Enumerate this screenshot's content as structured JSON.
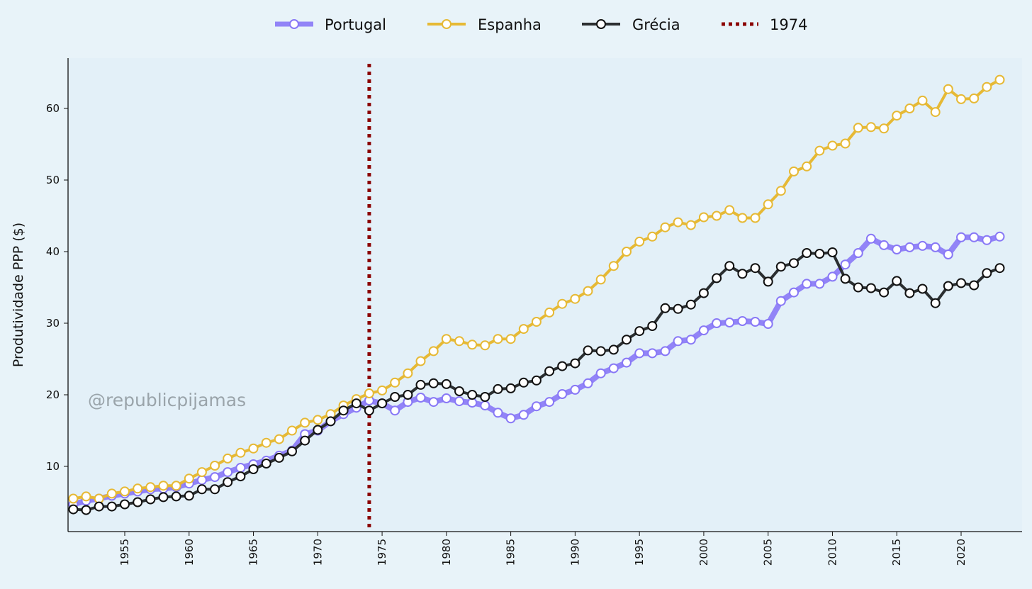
{
  "chart_data": {
    "type": "line",
    "title": "",
    "xlabel": "",
    "ylabel": "Produtividade PPP ($)",
    "watermark": "@republicpijamas",
    "xlim": [
      1950,
      2024
    ],
    "ylim": [
      0.9,
      67
    ],
    "xticks": [
      1955,
      1960,
      1965,
      1970,
      1975,
      1980,
      1985,
      1990,
      1995,
      2000,
      2005,
      2010,
      2015,
      2020
    ],
    "yticks": [
      10,
      20,
      30,
      40,
      50,
      60
    ],
    "grid": false,
    "legend_position": "top-center",
    "x": [
      1951,
      1952,
      1953,
      1954,
      1955,
      1956,
      1957,
      1958,
      1959,
      1960,
      1961,
      1962,
      1963,
      1964,
      1965,
      1966,
      1967,
      1968,
      1969,
      1970,
      1971,
      1972,
      1973,
      1974,
      1975,
      1976,
      1977,
      1978,
      1979,
      1980,
      1981,
      1982,
      1983,
      1984,
      1985,
      1986,
      1987,
      1988,
      1989,
      1990,
      1991,
      1992,
      1993,
      1994,
      1995,
      1996,
      1997,
      1998,
      1999,
      2000,
      2001,
      2002,
      2003,
      2004,
      2005,
      2006,
      2007,
      2008,
      2009,
      2010,
      2011,
      2012,
      2013,
      2014,
      2015,
      2016,
      2017,
      2018,
      2019,
      2020,
      2021,
      2022,
      2023
    ],
    "series": [
      {
        "name": "Portugal",
        "color": "#8878f6",
        "values": [
          4.7,
          5.2,
          5.5,
          5.9,
          6.2,
          6.5,
          6.8,
          6.9,
          7.1,
          7.6,
          8.1,
          8.5,
          9.2,
          9.8,
          10.3,
          10.8,
          11.5,
          12.2,
          14.5,
          15.0,
          16.3,
          17.3,
          18.2,
          19.2,
          18.8,
          17.8,
          19.0,
          19.6,
          19.0,
          19.5,
          19.1,
          18.9,
          18.5,
          17.5,
          16.7,
          17.2,
          18.4,
          19.0,
          20.1,
          20.7,
          21.6,
          23.0,
          23.7,
          24.5,
          25.8,
          25.8,
          26.1,
          27.5,
          27.7,
          29.0,
          30.0,
          30.1,
          30.3,
          30.2,
          29.9,
          33.1,
          34.3,
          35.5,
          35.5,
          36.5,
          38.2,
          39.8,
          41.8,
          40.9,
          40.3,
          40.6,
          40.8,
          40.6,
          39.6,
          42.0,
          42.0,
          41.6,
          42.1
        ]
      },
      {
        "name": "Espanha",
        "color": "#e6b935",
        "values": [
          5.5,
          5.8,
          5.5,
          6.2,
          6.5,
          6.9,
          7.1,
          7.3,
          7.3,
          8.3,
          9.2,
          10.1,
          11.1,
          11.9,
          12.5,
          13.3,
          13.8,
          15.0,
          16.1,
          16.5,
          17.3,
          18.5,
          19.4,
          20.2,
          20.6,
          21.7,
          23.0,
          24.7,
          26.1,
          27.8,
          27.5,
          27.0,
          26.9,
          27.8,
          27.8,
          29.2,
          30.2,
          31.5,
          32.7,
          33.4,
          34.5,
          36.1,
          38.0,
          40.0,
          41.4,
          42.1,
          43.4,
          44.1,
          43.7,
          44.8,
          45.0,
          45.8,
          44.7,
          44.7,
          46.6,
          48.5,
          51.2,
          51.9,
          54.1,
          54.8,
          55.1,
          57.3,
          57.4,
          57.2,
          59.0,
          60.0,
          61.1,
          59.5,
          62.7,
          61.3,
          61.4,
          63.0,
          64.0
        ]
      },
      {
        "name": "Grécia",
        "color": "#2b2f31",
        "values": [
          4.0,
          3.9,
          4.4,
          4.4,
          4.7,
          5.0,
          5.4,
          5.7,
          5.8,
          5.9,
          6.8,
          6.8,
          7.8,
          8.6,
          9.6,
          10.4,
          11.2,
          12.1,
          13.6,
          15.1,
          16.3,
          17.8,
          18.8,
          17.8,
          18.8,
          19.7,
          20.0,
          21.4,
          21.6,
          21.5,
          20.5,
          20.0,
          19.7,
          20.8,
          20.9,
          21.7,
          22.0,
          23.3,
          24.0,
          24.4,
          26.2,
          26.1,
          26.3,
          27.7,
          28.9,
          29.6,
          32.1,
          32.0,
          32.6,
          34.2,
          36.3,
          38.0,
          36.9,
          37.7,
          35.8,
          37.9,
          38.4,
          39.8,
          39.7,
          39.9,
          36.2,
          35.0,
          34.9,
          34.3,
          35.9,
          34.2,
          34.8,
          32.8,
          35.2,
          35.6,
          35.3,
          37.0,
          37.7
        ]
      }
    ],
    "vline": {
      "label": "1974",
      "x": 1974,
      "color": "#8b0000"
    }
  }
}
